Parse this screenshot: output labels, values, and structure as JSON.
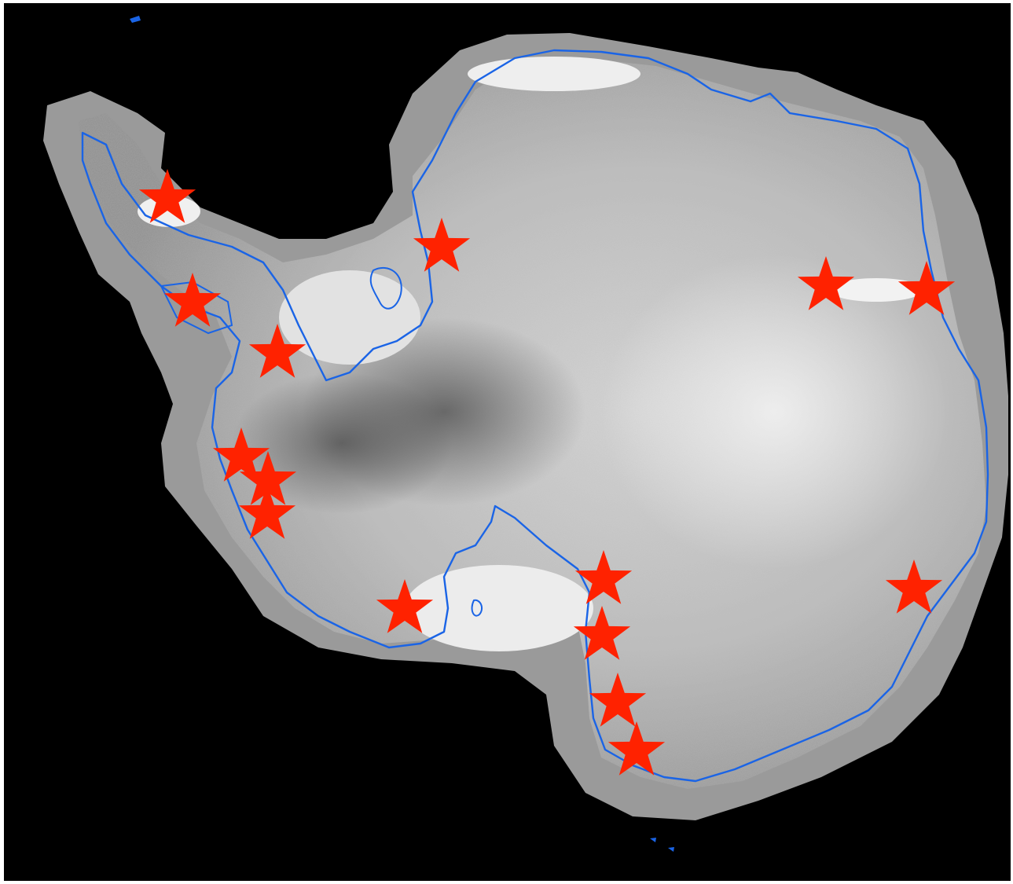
{
  "map": {
    "kind": "satellite mosaic",
    "region_depicted": "antarctica",
    "background_color": "#000000",
    "land_shading": "grayscale",
    "coastline_color": "#1a64e6",
    "marker_color": "#ff2200",
    "marker_shape": "star",
    "marker_count": 15,
    "text_labels": []
  }
}
